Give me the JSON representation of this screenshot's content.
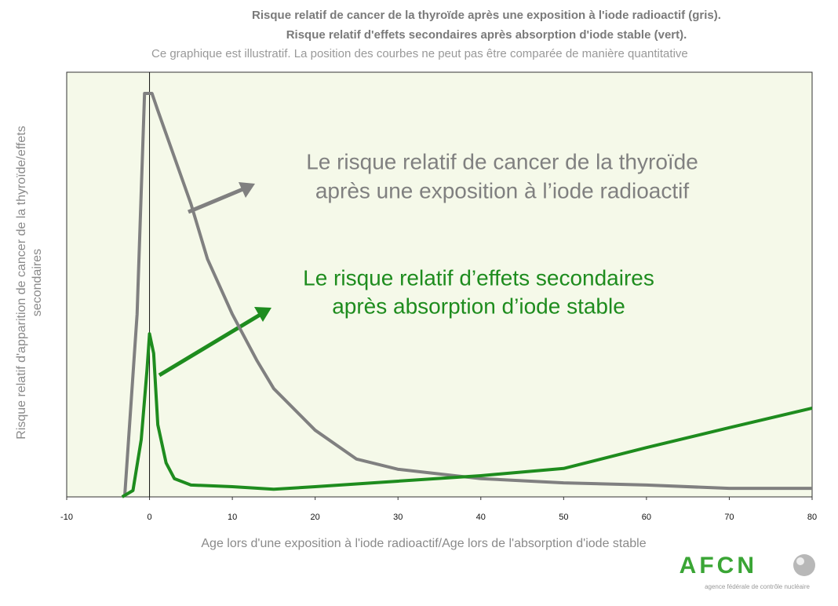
{
  "chart_data": {
    "type": "line",
    "title": [
      "Risque relatif de cancer de la thyroïde après une exposition à l'iode radioactif (gris).",
      "Risque relatif d'effets secondaires après absorption d'iode stable (vert)."
    ],
    "subtitle": "Ce graphique est illustratif. La position des courbes ne peut pas être comparée de manière quantitative",
    "x_label": "Age lors d'une exposition à l'iode radioactif/Age lors de l'absorption d'iode stable",
    "y_label": [
      "Risque relatif d'apparition de cancer de la thyroïde/effets",
      "secondaires"
    ],
    "xlim": [
      -10,
      80
    ],
    "xticks": [
      -10,
      0,
      10,
      20,
      30,
      40,
      50,
      60,
      70,
      80
    ],
    "ylim": [
      0,
      100
    ],
    "series": [
      {
        "color": "#808080",
        "x": [
          -3,
          -1.5,
          -0.6,
          0.3,
          1,
          3,
          5,
          7,
          10,
          13,
          15,
          20,
          25,
          30,
          40,
          50,
          60,
          70,
          80
        ],
        "values": [
          0,
          43,
          95,
          95,
          91,
          80,
          69,
          56,
          43,
          32,
          25.5,
          15.7,
          8.9,
          6.5,
          4.3,
          3.3,
          2.8,
          2,
          2
        ]
      },
      {
        "color": "#1e8c1e",
        "x": [
          -3.3,
          -2,
          -1,
          -0.3,
          0,
          0.5,
          1,
          2,
          3,
          5,
          10,
          15,
          20,
          30,
          40,
          50,
          60,
          70,
          80
        ],
        "values": [
          0,
          1.5,
          13.5,
          30,
          38.4,
          33.8,
          17,
          8,
          4.3,
          2.8,
          2.4,
          1.8,
          2.4,
          3.7,
          5,
          6.7,
          11.6,
          16.3,
          20.9
        ]
      }
    ],
    "annotations": [
      {
        "lines": [
          "Le risque relatif de cancer de la thyroïde",
          "après une exposition à l’iode radioactif"
        ],
        "color": "#808080"
      },
      {
        "lines": [
          "Le risque relatif d’effets secondaires",
          "après absorption d’iode stable"
        ],
        "color": "#1e8c1e"
      }
    ],
    "logo": {
      "name": "AFCN",
      "tagline": "agence fédérale de contrôle nucléaire"
    }
  }
}
